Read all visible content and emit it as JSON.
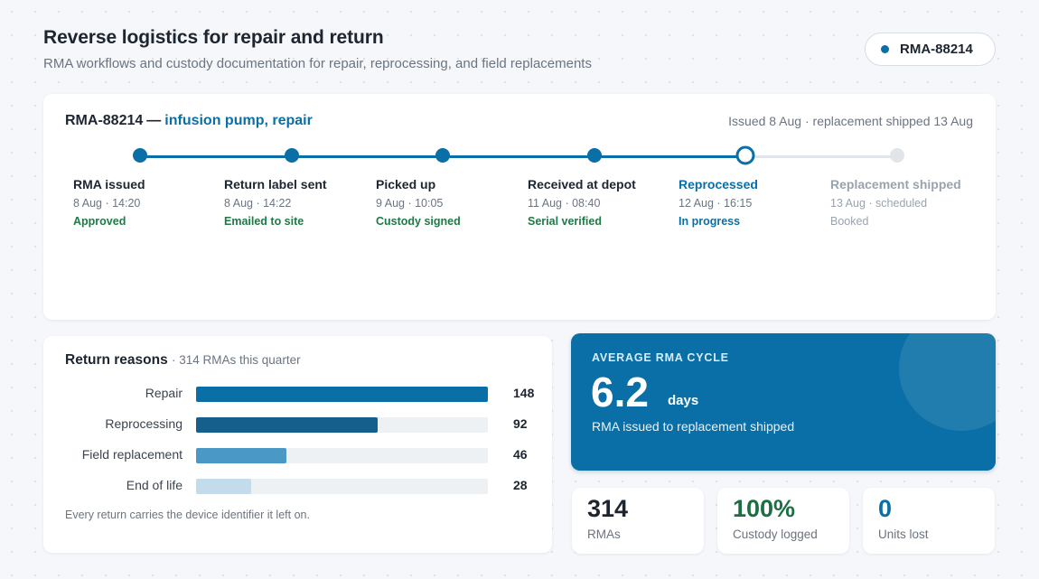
{
  "header": {
    "title": "Reverse logistics for repair and return",
    "subtitle": "RMA workflows and custody documentation for repair, reprocessing, and field replacements",
    "rma_badge": "RMA-88214"
  },
  "timeline": {
    "rma_id": "RMA-88214",
    "separator": "—",
    "item": "infusion pump, repair",
    "meta": "Issued 8 Aug · replacement shipped 13 Aug",
    "steps": [
      {
        "label": "RMA issued",
        "time": "8 Aug · 14:20",
        "status": "Approved",
        "state": "done"
      },
      {
        "label": "Return label sent",
        "time": "8 Aug · 14:22",
        "status": "Emailed to site",
        "state": "done"
      },
      {
        "label": "Picked up",
        "time": "9 Aug · 10:05",
        "status": "Custody signed",
        "state": "done"
      },
      {
        "label": "Received at depot",
        "time": "11 Aug · 08:40",
        "status": "Serial verified",
        "state": "done"
      },
      {
        "label": "Reprocessed",
        "time": "12 Aug · 16:15",
        "status": "In progress",
        "state": "current"
      },
      {
        "label": "Replacement shipped",
        "time": "13 Aug · scheduled",
        "status": "Booked",
        "state": "pending"
      }
    ]
  },
  "reasons": {
    "title": "Return reasons",
    "subtitle": "· 314 RMAs this quarter",
    "footnote": "Every return carries the device identifier it left on.",
    "max": 148,
    "items": [
      {
        "label": "Repair",
        "value": 148,
        "color": "#0a6fa6"
      },
      {
        "label": "Reprocessing",
        "value": 92,
        "color": "#145f8b"
      },
      {
        "label": "Field replacement",
        "value": 46,
        "color": "#4a98c6"
      },
      {
        "label": "End of life",
        "value": 28,
        "color": "#c2dcec"
      }
    ]
  },
  "cycle": {
    "eyebrow": "AVERAGE RMA CYCLE",
    "value": "6.2",
    "unit": "days",
    "description": "RMA issued to replacement shipped"
  },
  "stats": [
    {
      "value": "314",
      "label": "RMAs",
      "color": "#1d2530"
    },
    {
      "value": "100%",
      "label": "Custody logged",
      "color": "#1e6e43"
    },
    {
      "value": "0",
      "label": "Units lost",
      "color": "#0a6fa6"
    }
  ]
}
